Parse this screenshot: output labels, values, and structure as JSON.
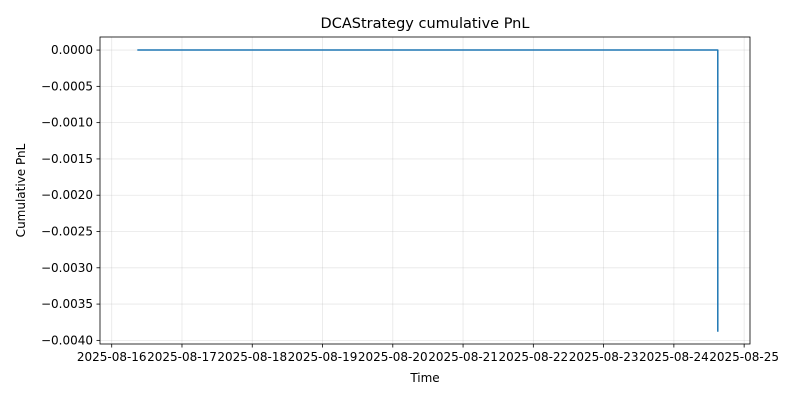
{
  "chart_data": {
    "type": "line",
    "title": "DCAStrategy cumulative PnL",
    "xlabel": "Time",
    "ylabel": "Cumulative PnL",
    "x_tick_labels": [
      "2025-08-16",
      "2025-08-17",
      "2025-08-18",
      "2025-08-19",
      "2025-08-20",
      "2025-08-21",
      "2025-08-22",
      "2025-08-23",
      "2025-08-24",
      "2025-08-25"
    ],
    "y_ticks": [
      0.0,
      -0.0005,
      -0.001,
      -0.0015,
      -0.002,
      -0.0025,
      -0.003,
      -0.0035,
      -0.004
    ],
    "y_tick_labels": [
      "0.0000",
      "−0.0005",
      "−0.0010",
      "−0.0015",
      "−0.0020",
      "−0.0025",
      "−0.0030",
      "−0.0035",
      "−0.0040"
    ],
    "xlim": [
      "2025-08-15 20:00",
      "2025-08-25 02:00"
    ],
    "ylim": [
      -0.00405,
      0.00018
    ],
    "grid": true,
    "series": [
      {
        "color": "#1f77b4",
        "x": [
          "2025-08-16 09:00",
          "2025-08-24 15:00",
          "2025-08-24 15:00"
        ],
        "y": [
          0.0,
          0.0,
          -0.00387
        ]
      }
    ]
  }
}
